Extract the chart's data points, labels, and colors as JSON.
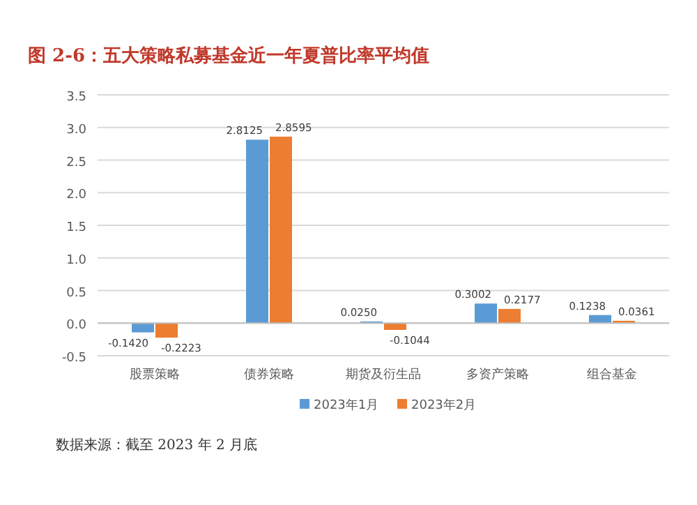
{
  "chart_data": {
    "type": "bar",
    "title": "图 2-6：五大策略私募基金近一年夏普比率平均值",
    "categories": [
      "股票策略",
      "债券策略",
      "期货及衍生品",
      "多资产策略",
      "组合基金"
    ],
    "series": [
      {
        "name": "2023年1月",
        "color": "#5b9bd5",
        "values": [
          -0.142,
          2.8125,
          0.025,
          0.3002,
          0.1238
        ],
        "value_labels": [
          "-0.1420",
          "2.8125",
          "0.0250",
          "0.3002",
          "0.1238"
        ]
      },
      {
        "name": "2023年2月",
        "color": "#ed7d31",
        "values": [
          -0.2223,
          2.8595,
          -0.1044,
          0.2177,
          0.0361
        ],
        "value_labels": [
          "-0.2223",
          "2.8595",
          "-0.1044",
          "0.2177",
          "0.0361"
        ]
      }
    ],
    "ylim": [
      -0.5,
      3.5
    ],
    "yticks": [
      {
        "value": -0.5,
        "label": "-0.5"
      },
      {
        "value": 0,
        "label": "0.0"
      },
      {
        "value": 0.5,
        "label": "0.5"
      },
      {
        "value": 1,
        "label": "1.0"
      },
      {
        "value": 1.5,
        "label": "1.5"
      },
      {
        "value": 2,
        "label": "2.0"
      },
      {
        "value": 2.5,
        "label": "2.5"
      },
      {
        "value": 3,
        "label": "3.0"
      },
      {
        "value": 3.5,
        "label": "3.5"
      }
    ],
    "grid": "y",
    "legend": "bottom",
    "annotations": [
      "数据来源：截至 2023 年 2 月底"
    ]
  }
}
